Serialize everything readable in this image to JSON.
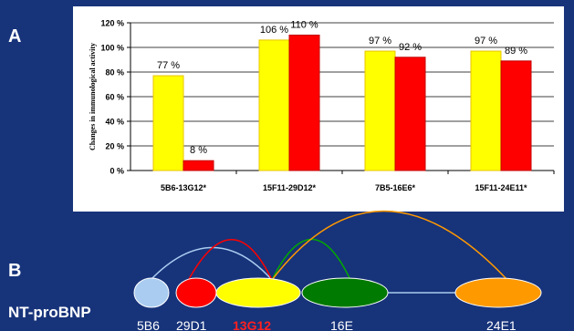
{
  "panel_labels": {
    "a": "A",
    "b": "B"
  },
  "chart_data": {
    "type": "bar",
    "ylabel": "Changes in immunological activity",
    "ylim": [
      0,
      120
    ],
    "yticks": [
      "0 %",
      "20 %",
      "40 %",
      "60 %",
      "80 %",
      "100 %",
      "120 %"
    ],
    "ytick_values": [
      0,
      20,
      40,
      60,
      80,
      100,
      120
    ],
    "grid": "horizontal",
    "categories": [
      "5B6-13G12*",
      "15F11-29D12*",
      "7B5-16E6*",
      "15F11-24E11*"
    ],
    "series": [
      {
        "values": [
          77,
          106,
          97,
          97
        ],
        "labels": [
          "77 %",
          "106 %",
          "97 %",
          "97 %"
        ],
        "color": "#ffff00",
        "edge": "#e8c400"
      },
      {
        "values": [
          8,
          110,
          92,
          89
        ],
        "labels": [
          "8 %",
          "110 %",
          "92 %",
          "89 %"
        ],
        "color": "#ff0000",
        "edge": "#c40000"
      }
    ]
  },
  "diagram": {
    "protein": "NT-proBNP",
    "segments": [
      {
        "label": "5B6",
        "color": "#a9ccf0",
        "label_color": "#ffffff"
      },
      {
        "label": "29D1",
        "color": "#ff0000",
        "label_color": "#ffffff"
      },
      {
        "label": "13G12",
        "color": "#ffff00",
        "label_color": "#ff2020"
      },
      {
        "label": "16E",
        "color": "#007a00",
        "label_color": "#ffffff"
      },
      {
        "label": "24E1",
        "color": "#ff9900",
        "label_color": "#ffffff"
      }
    ],
    "arc_colors": {
      "light_blue": "#a9ccf0",
      "red": "#ff0000",
      "green": "#00aa00",
      "orange": "#ff9900",
      "connector": "#a9ccf0"
    }
  }
}
